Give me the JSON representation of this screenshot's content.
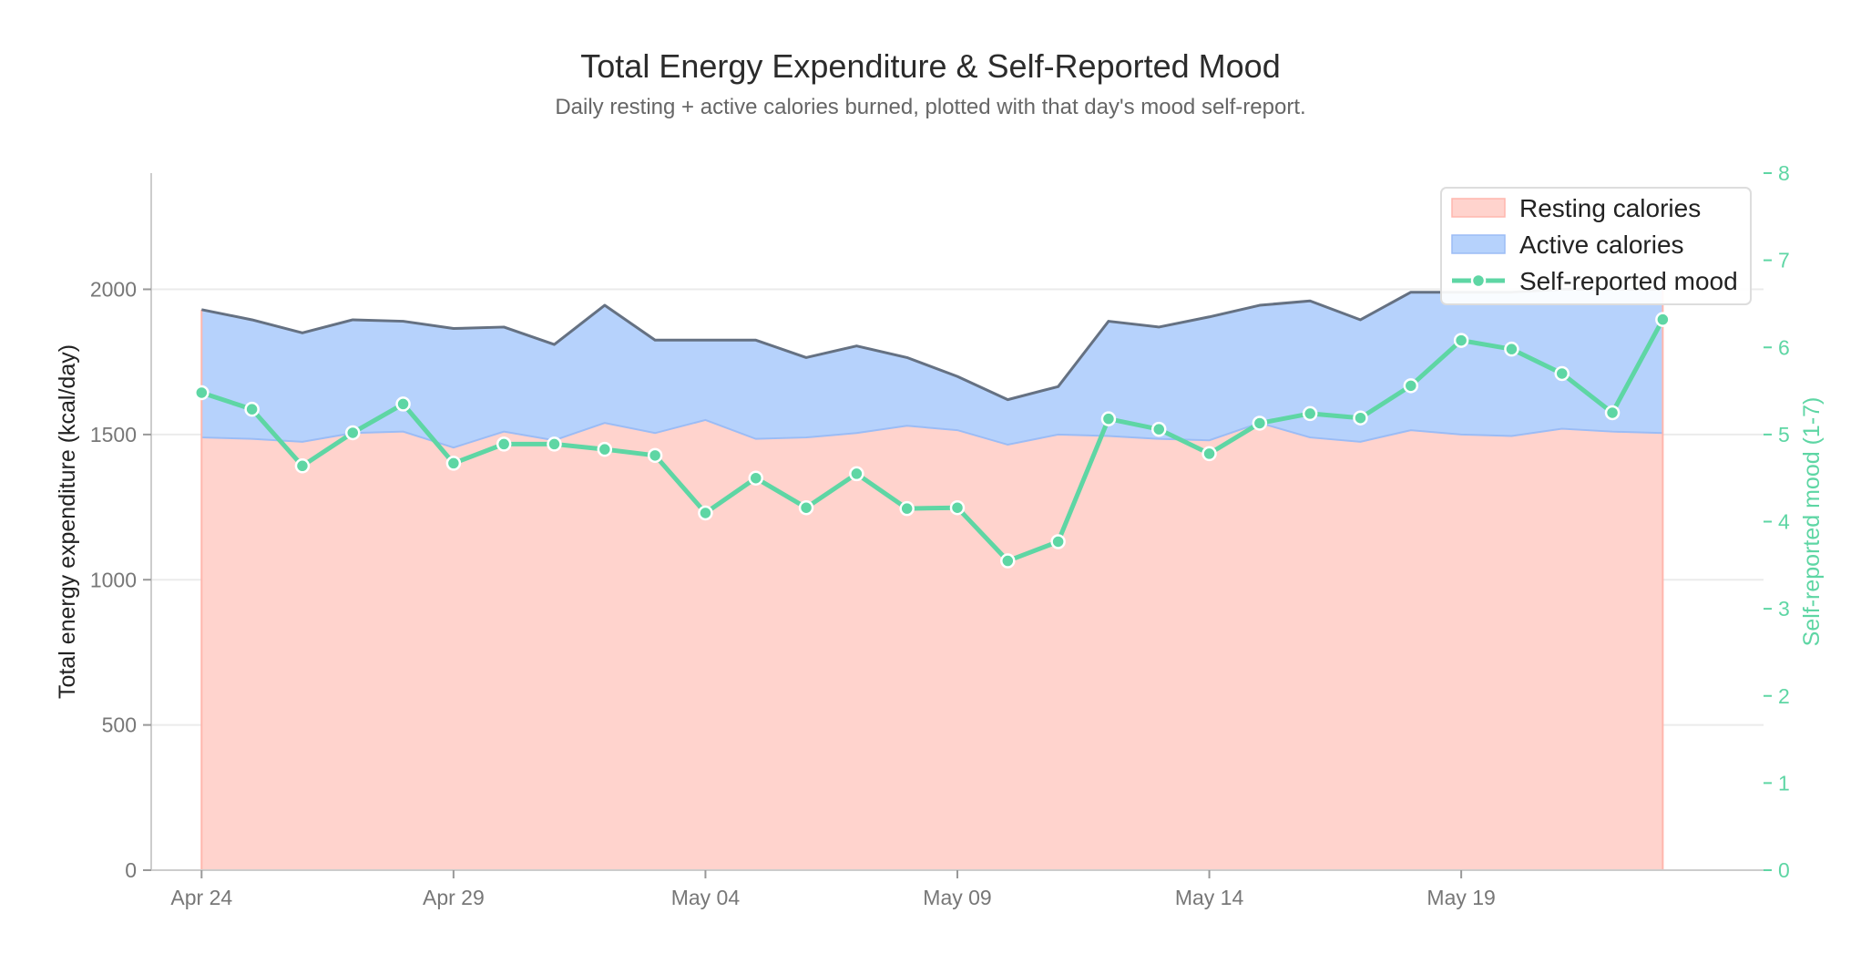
{
  "chart_data": {
    "type": "area",
    "title": "Total Energy Expenditure & Self-Reported Mood",
    "subtitle": "Daily resting + active calories burned, plotted with that day's mood self-report.",
    "ylabel": "Total energy expenditure (kcal/day)",
    "y2label": "Self-reported mood (1-7)",
    "ylim": [
      0,
      2400
    ],
    "y2lim": [
      0,
      8
    ],
    "yticks": [
      0,
      500,
      1000,
      1500,
      2000
    ],
    "y2ticks": [
      0,
      1,
      2,
      3,
      4,
      5,
      6,
      7,
      8
    ],
    "xlim": [
      "2024-04-23",
      "2024-05-25"
    ],
    "x_ticks": [
      {
        "date": "2024-04-24",
        "label": "Apr 24"
      },
      {
        "date": "2024-04-29",
        "label": "Apr 29"
      },
      {
        "date": "2024-05-04",
        "label": "May 04"
      },
      {
        "date": "2024-05-09",
        "label": "May 09"
      },
      {
        "date": "2024-05-14",
        "label": "May 14"
      },
      {
        "date": "2024-05-19",
        "label": "May 19"
      }
    ],
    "grid": "horizontal",
    "legend_position": "top-right",
    "x": [
      "2024-04-24",
      "2024-04-25",
      "2024-04-26",
      "2024-04-27",
      "2024-04-28",
      "2024-04-29",
      "2024-04-30",
      "2024-05-01",
      "2024-05-02",
      "2024-05-03",
      "2024-05-04",
      "2024-05-05",
      "2024-05-06",
      "2024-05-07",
      "2024-05-08",
      "2024-05-09",
      "2024-05-10",
      "2024-05-11",
      "2024-05-12",
      "2024-05-13",
      "2024-05-14",
      "2024-05-15",
      "2024-05-16",
      "2024-05-17",
      "2024-05-18",
      "2024-05-19",
      "2024-05-20",
      "2024-05-21",
      "2024-05-22",
      "2024-05-23"
    ],
    "series": [
      {
        "name": "Resting calories",
        "kind": "stacked-area",
        "color": "#ffd3cd",
        "line_color": "#ffb6ad",
        "values": [
          1490,
          1485,
          1475,
          1505,
          1510,
          1455,
          1510,
          1480,
          1540,
          1505,
          1550,
          1485,
          1490,
          1505,
          1530,
          1515,
          1465,
          1500,
          1495,
          1485,
          1480,
          1540,
          1490,
          1475,
          1515,
          1500,
          1495,
          1520,
          1510,
          1505
        ]
      },
      {
        "name": "Active calories",
        "kind": "stacked-area",
        "color": "#b6d2fc",
        "line_color": "#9bbcf5",
        "values": [
          440,
          410,
          375,
          390,
          380,
          410,
          360,
          330,
          405,
          320,
          275,
          340,
          275,
          300,
          235,
          185,
          155,
          165,
          395,
          385,
          425,
          405,
          470,
          420,
          475,
          490,
          495,
          480,
          490,
          495
        ]
      },
      {
        "name": "Self-reported mood",
        "kind": "line",
        "axis": "right",
        "color": "#5ed6a4",
        "values": [
          5.48,
          5.29,
          4.64,
          5.02,
          5.35,
          4.67,
          4.89,
          4.89,
          4.83,
          4.76,
          4.1,
          4.5,
          4.16,
          4.55,
          4.15,
          4.16,
          3.55,
          3.77,
          5.18,
          5.06,
          4.78,
          5.13,
          5.24,
          5.19,
          5.56,
          6.08,
          5.98,
          5.7,
          5.25,
          6.32
        ]
      }
    ],
    "total_line_color": "#657182"
  }
}
